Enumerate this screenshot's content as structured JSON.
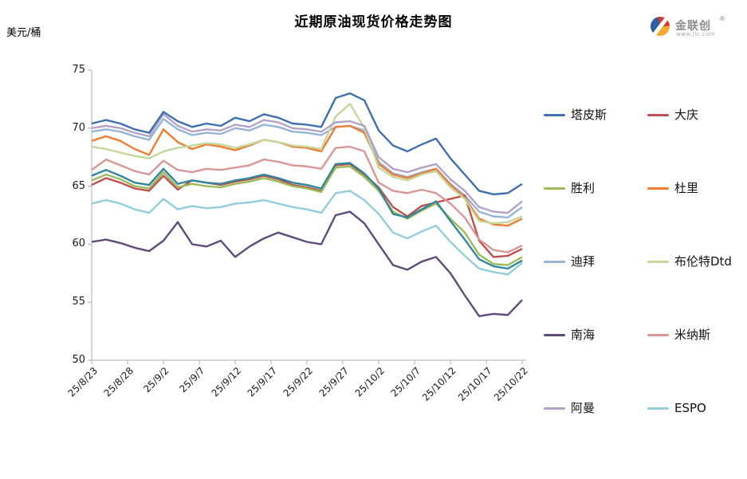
{
  "title": "近期原油现货价格走势图",
  "y_axis_unit": "美元/桶",
  "logo": {
    "brand": "金联创",
    "reg": "®",
    "url": "www.jlc.com"
  },
  "chart_data": {
    "type": "line",
    "title": "近期原油现货价格走势图",
    "ylabel": "美元/桶",
    "ylim": [
      50,
      75
    ],
    "yticks": [
      75,
      70,
      65,
      60,
      55,
      50
    ],
    "grid": false,
    "legend_position": "right",
    "x_tick_labels": [
      "25/8/23",
      "25/8/28",
      "25/9/2",
      "25/9/7",
      "25/9/12",
      "25/9/17",
      "25/9/22",
      "25/9/27",
      "25/10/2",
      "25/10/7",
      "25/10/12",
      "25/10/17",
      "25/10/22"
    ],
    "x": [
      "25/8/23",
      "25/8/25",
      "25/8/27",
      "25/8/29",
      "25/8/31",
      "25/9/2",
      "25/9/4",
      "25/9/6",
      "25/9/8",
      "25/9/10",
      "25/9/12",
      "25/9/14",
      "25/9/16",
      "25/9/18",
      "25/9/20",
      "25/9/22",
      "25/9/24",
      "25/9/26",
      "25/9/28",
      "25/9/30",
      "25/10/2",
      "25/10/4",
      "25/10/6",
      "25/10/8",
      "25/10/10",
      "25/10/12",
      "25/10/14",
      "25/10/16",
      "25/10/18",
      "25/10/20",
      "25/10/22"
    ],
    "series": [
      {
        "name": "塔皮斯",
        "color": "#3E6FB0",
        "in_legend": true,
        "values": [
          70.4,
          70.7,
          70.4,
          69.9,
          69.6,
          71.4,
          70.6,
          70.1,
          70.4,
          70.2,
          70.9,
          70.6,
          71.2,
          70.9,
          70.4,
          70.3,
          70.1,
          72.6,
          73.0,
          72.4,
          69.8,
          68.5,
          68.0,
          68.6,
          69.1,
          67.4,
          66.0,
          64.6,
          64.3,
          64.4,
          65.2
        ]
      },
      {
        "name": "大庆",
        "color": "#C0504D",
        "in_legend": true,
        "values": [
          65.1,
          65.7,
          65.3,
          64.8,
          64.6,
          65.9,
          64.7,
          65.5,
          65.3,
          65.1,
          65.4,
          65.6,
          65.9,
          65.6,
          65.1,
          64.9,
          64.6,
          66.8,
          66.9,
          66.0,
          64.9,
          63.2,
          62.4,
          63.3,
          63.6,
          63.9,
          64.2,
          60.3,
          58.9,
          59.0,
          59.6
        ]
      },
      {
        "name": "胜利",
        "color": "#9BBB59",
        "in_legend": true,
        "values": [
          65.5,
          66.0,
          65.6,
          65.0,
          64.8,
          66.2,
          64.9,
          65.2,
          65.0,
          64.9,
          65.2,
          65.4,
          65.7,
          65.4,
          65.0,
          64.8,
          64.5,
          66.6,
          66.7,
          65.8,
          64.6,
          62.8,
          62.2,
          62.9,
          63.5,
          62.2,
          61.0,
          59.1,
          58.3,
          58.2,
          58.9
        ]
      },
      {
        "name": "杜里",
        "color": "#ED7D31",
        "in_legend": true,
        "values": [
          68.9,
          69.3,
          68.9,
          68.2,
          67.7,
          69.9,
          68.8,
          68.2,
          68.6,
          68.4,
          68.1,
          68.5,
          69.0,
          68.8,
          68.4,
          68.3,
          68.0,
          70.1,
          70.2,
          69.6,
          66.9,
          66.0,
          65.7,
          66.1,
          66.5,
          65.1,
          64.0,
          62.2,
          61.7,
          61.6,
          62.2
        ]
      },
      {
        "name": "迪拜",
        "color": "#95B3D7",
        "in_legend": true,
        "values": [
          69.7,
          69.9,
          69.7,
          69.3,
          69.0,
          70.8,
          69.9,
          69.4,
          69.6,
          69.5,
          70.0,
          69.8,
          70.3,
          70.1,
          69.7,
          69.6,
          69.4,
          70.1,
          70.2,
          69.8,
          67.1,
          66.1,
          65.8,
          66.2,
          66.5,
          65.2,
          64.2,
          62.8,
          62.4,
          62.3,
          63.2
        ]
      },
      {
        "name": "布伦特Dtd",
        "color": "#C3D69B",
        "in_legend": true,
        "values": [
          68.4,
          68.2,
          67.9,
          67.6,
          67.4,
          68.0,
          68.3,
          68.5,
          68.7,
          68.6,
          68.3,
          68.6,
          69.0,
          68.8,
          68.5,
          68.4,
          68.2,
          71.0,
          72.1,
          70.0,
          66.6,
          65.8,
          65.5,
          66.0,
          66.3,
          64.9,
          63.9,
          62.0,
          61.8,
          61.9,
          62.4
        ]
      },
      {
        "name": "南海",
        "color": "#604A7B",
        "in_legend": true,
        "values": [
          60.2,
          60.4,
          60.1,
          59.7,
          59.4,
          60.3,
          61.9,
          60.0,
          59.8,
          60.3,
          58.9,
          59.8,
          60.5,
          61.0,
          60.6,
          60.2,
          60.0,
          62.5,
          62.8,
          61.8,
          60.0,
          58.2,
          57.8,
          58.5,
          58.9,
          57.5,
          55.6,
          53.8,
          54.0,
          53.9,
          55.2
        ]
      },
      {
        "name": "米纳斯",
        "color": "#D99694",
        "in_legend": true,
        "values": [
          66.4,
          67.3,
          66.8,
          66.3,
          66.0,
          67.2,
          66.4,
          66.2,
          66.5,
          66.4,
          66.6,
          66.8,
          67.3,
          67.1,
          66.8,
          66.7,
          66.5,
          68.3,
          68.4,
          68.0,
          65.3,
          64.6,
          64.4,
          64.7,
          64.4,
          63.5,
          62.3,
          60.4,
          59.5,
          59.3,
          59.9
        ]
      },
      {
        "name": "阿曼",
        "color": "#B2A2C7",
        "in_legend": true,
        "values": [
          70.0,
          70.2,
          70.0,
          69.6,
          69.3,
          71.2,
          70.2,
          69.7,
          69.9,
          69.8,
          70.3,
          70.1,
          70.7,
          70.5,
          70.0,
          69.9,
          69.7,
          70.5,
          70.6,
          70.2,
          67.5,
          66.5,
          66.2,
          66.6,
          66.9,
          65.6,
          64.6,
          63.2,
          62.8,
          62.7,
          63.7
        ]
      },
      {
        "name": "ESPO",
        "color": "#92CDDC",
        "in_legend": true,
        "values": [
          63.5,
          63.8,
          63.5,
          63.0,
          62.7,
          63.9,
          63.0,
          63.3,
          63.1,
          63.2,
          63.5,
          63.6,
          63.8,
          63.5,
          63.2,
          63.0,
          62.7,
          64.4,
          64.6,
          63.8,
          62.6,
          61.0,
          60.5,
          61.1,
          61.6,
          60.2,
          59.0,
          57.9,
          57.6,
          57.4,
          58.4
        ]
      },
      {
        "name": "",
        "color": "#31859C",
        "in_legend": false,
        "values": [
          65.9,
          66.4,
          65.9,
          65.3,
          65.1,
          66.5,
          65.2,
          65.5,
          65.3,
          65.2,
          65.5,
          65.7,
          66.0,
          65.7,
          65.3,
          65.1,
          64.8,
          66.9,
          67.0,
          66.1,
          64.8,
          62.6,
          62.3,
          63.0,
          63.7,
          62.0,
          60.4,
          58.7,
          58.1,
          57.9,
          58.6
        ]
      }
    ]
  }
}
